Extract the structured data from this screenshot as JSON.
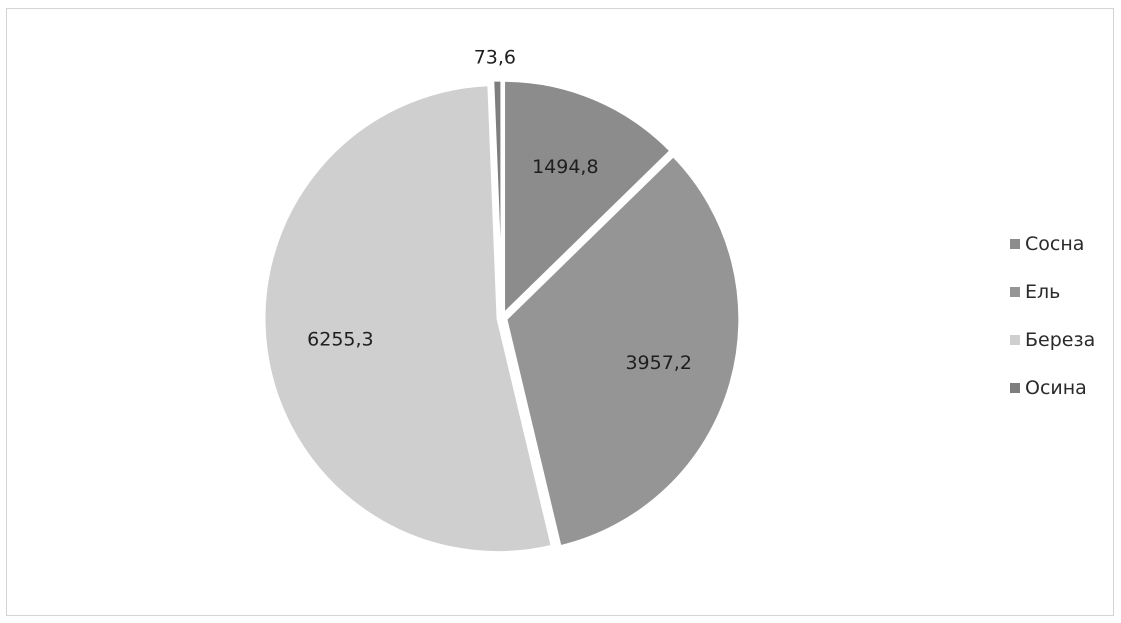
{
  "chart_data": {
    "type": "pie",
    "categories": [
      "Сосна",
      "Ель",
      "Береза",
      "Осина"
    ],
    "values": [
      1494.8,
      3957.2,
      6255.3,
      73.6
    ],
    "data_labels": [
      "1494,8",
      "3957,2",
      "6255,3",
      "73,6"
    ],
    "colors": [
      "#8c8c8c",
      "#959595",
      "#cfcfcf",
      "#7e7e7e"
    ],
    "legend_position": "right",
    "start_angle": "top, clockwise",
    "exploded_slices": true
  }
}
